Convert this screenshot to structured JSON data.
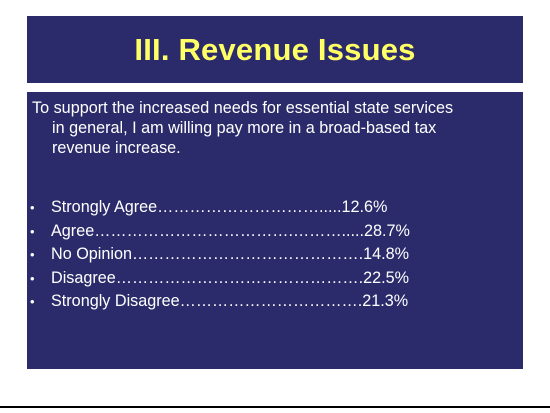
{
  "slide": {
    "title": "III. Revenue Issues",
    "question_lines": [
      "To support the increased needs for essential state services",
      "in general, I am willing pay more in a broad-based tax",
      "revenue increase."
    ],
    "results": [
      {
        "text": "Strongly Agree………………………….....12.6%",
        "percent": 12.6
      },
      {
        "text": "Agree……………………………….……….....28.7%",
        "percent": 28.7
      },
      {
        "text": "No Opinion…………………………………….14.8%",
        "percent": 14.8
      },
      {
        "text": "Disagree……………………………………….22.5%",
        "percent": 22.5
      },
      {
        "text": "Strongly Disagree…………………………….21.3%",
        "percent": 21.3
      }
    ],
    "bullet_glyph": "•",
    "colors": {
      "panel_bg": "#2b2b6b",
      "title_text": "#ffff66",
      "body_text": "#ffffff"
    }
  }
}
